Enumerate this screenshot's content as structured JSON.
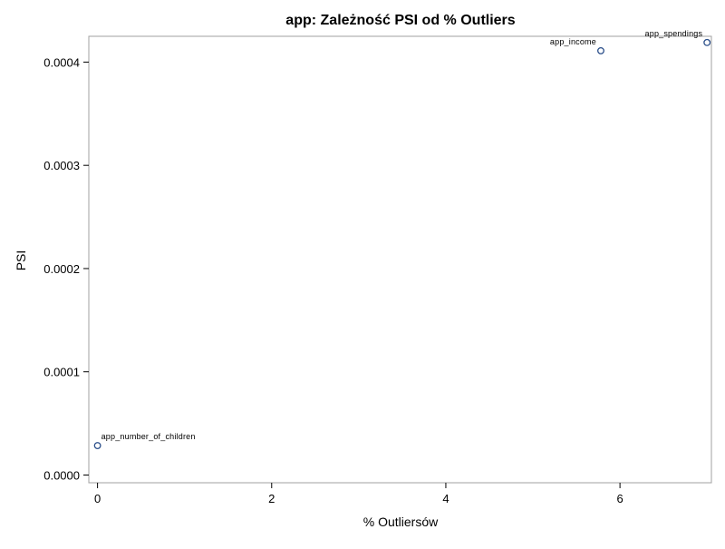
{
  "chart_data": {
    "type": "scatter",
    "title": "app: Zależność PSI od % Outliers",
    "xlabel": "% Outliersów",
    "ylabel": "PSI",
    "xlim": [
      -0.1,
      7.05
    ],
    "ylim": [
      -7.5e-06,
      0.000425
    ],
    "xticks": [
      "0",
      "2",
      "4",
      "6"
    ],
    "xtick_values": [
      0,
      2,
      4,
      6
    ],
    "yticks": [
      "0.0000",
      "0.0001",
      "0.0002",
      "0.0003",
      "0.0004"
    ],
    "ytick_values": [
      0,
      0.0001,
      0.0002,
      0.0003,
      0.0004
    ],
    "grid": false,
    "marker_color": "#2b4f8a",
    "points": [
      {
        "label": "app_number_of_children",
        "x": 0.0,
        "y": 2.85e-05,
        "label_side": "right"
      },
      {
        "label": "app_income",
        "x": 5.78,
        "y": 0.000411,
        "label_side": "left"
      },
      {
        "label": "app_spendings",
        "x": 7.0,
        "y": 0.000419,
        "label_side": "left"
      }
    ]
  }
}
